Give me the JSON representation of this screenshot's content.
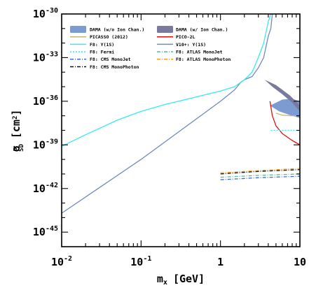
{
  "chart_data": {
    "type": "line",
    "title": "",
    "xlabel": "m",
    "xlabel_sub": "x",
    "xlabel_unit": "[GeV]",
    "ylabel": "σ",
    "ylabel_sup": "p",
    "ylabel_sub": "SD",
    "ylabel_unit_open": "[cm",
    "ylabel_unit_sup": "2",
    "ylabel_unit_close": "]",
    "xscale": "log",
    "yscale": "log",
    "xlim": [
      0.01,
      10
    ],
    "ylim": [
      1e-46,
      1e-30
    ],
    "grid": false,
    "legend_position": "top-left",
    "x_ticks": [
      {
        "value": 0.01,
        "base": "10",
        "exp": "-2"
      },
      {
        "value": 0.1,
        "base": "10",
        "exp": "-1"
      },
      {
        "value": 1,
        "base": "1",
        "exp": ""
      },
      {
        "value": 10,
        "base": "10",
        "exp": ""
      }
    ],
    "y_ticks": [
      {
        "value": 1e-30,
        "base": "10",
        "exp": "-30"
      },
      {
        "value": 1e-33,
        "base": "10",
        "exp": "-33"
      },
      {
        "value": 1e-36,
        "base": "10",
        "exp": "-36"
      },
      {
        "value": 1e-39,
        "base": "10",
        "exp": "-39"
      },
      {
        "value": 1e-42,
        "base": "10",
        "exp": "-42"
      },
      {
        "value": 1e-45,
        "base": "10",
        "exp": "-45"
      }
    ],
    "series": [
      {
        "name": "DAMA (w/o Ion Chan.)",
        "kind": "region",
        "color": "#7b9bd2",
        "points": [
          [
            4.2,
            5e-37
          ],
          [
            5.5,
            2e-37
          ],
          [
            8.0,
            1e-37
          ],
          [
            10.0,
            7e-38
          ],
          [
            10.0,
            1e-36
          ],
          [
            8.0,
            1.5e-36
          ],
          [
            6.0,
            1.3e-36
          ]
        ]
      },
      {
        "name": "DAMA (w/ Ion Chan.)",
        "kind": "region",
        "color": "#7a7a9e",
        "points": [
          [
            3.6,
            3e-35
          ],
          [
            4.5,
            1e-35
          ],
          [
            6.0,
            3e-36
          ],
          [
            8.0,
            8e-37
          ],
          [
            10.0,
            2e-37
          ],
          [
            10.0,
            5e-37
          ],
          [
            7.5,
            2.5e-36
          ],
          [
            5.0,
            1.3e-35
          ]
        ]
      },
      {
        "name": "PICASSO (2012)",
        "kind": "line",
        "color": "#c9b476",
        "dash": "",
        "points": [
          [
            5.0,
            1.5e-37
          ],
          [
            6.0,
            1.1e-37
          ],
          [
            8.0,
            1e-37
          ],
          [
            10.0,
            1e-37
          ]
        ]
      },
      {
        "name": "PICO-2L",
        "kind": "line",
        "color": "#e01010",
        "dash": "",
        "points": [
          [
            4.2,
            1e-36
          ],
          [
            4.5,
            1e-37
          ],
          [
            5.0,
            2e-38
          ],
          [
            6.0,
            6e-39
          ],
          [
            8.0,
            2e-39
          ],
          [
            10.0,
            1e-39
          ]
        ]
      },
      {
        "name": "F8: Υ(1S)",
        "kind": "line",
        "color": "#38e8f0",
        "dash": "",
        "points": [
          [
            0.01,
            8e-40
          ],
          [
            0.02,
            5e-39
          ],
          [
            0.05,
            5e-38
          ],
          [
            0.1,
            2e-37
          ],
          [
            0.2,
            6e-37
          ],
          [
            0.5,
            2e-36
          ],
          [
            1.0,
            5e-36
          ],
          [
            1.5,
            1e-35
          ],
          [
            2.0,
            3e-35
          ],
          [
            2.5,
            1e-34
          ],
          [
            3.0,
            1e-33
          ],
          [
            3.5,
            1e-32
          ],
          [
            4.0,
            3e-31
          ],
          [
            4.3,
            1e-30
          ]
        ]
      },
      {
        "name": "V10+: Υ(1S)",
        "kind": "line",
        "color": "#6f8bbd",
        "dash": "",
        "points": [
          [
            0.01,
            2e-44
          ],
          [
            0.1,
            1e-40
          ],
          [
            1.0,
            1e-36
          ],
          [
            1.5,
            6e-36
          ],
          [
            1.8,
            2e-35
          ],
          [
            2.0,
            3e-35
          ],
          [
            2.5,
            5e-35
          ],
          [
            3.0,
            2e-34
          ],
          [
            3.5,
            1e-33
          ],
          [
            4.0,
            3e-32
          ],
          [
            4.3,
            1e-31
          ],
          [
            4.5,
            1e-30
          ]
        ]
      },
      {
        "name": "F8: Fermi",
        "kind": "line",
        "color": "#38e8f0",
        "dash": "2,2",
        "points": [
          [
            4.3,
            1e-38
          ],
          [
            6.0,
            1e-38
          ],
          [
            10.0,
            1e-38
          ]
        ]
      },
      {
        "name": "F8: ATLAS MonoJet",
        "kind": "line",
        "color": "#58b898",
        "dash": "5,2,1,2",
        "points": [
          [
            1.0,
            6e-42
          ],
          [
            3.0,
            8e-42
          ],
          [
            10.0,
            1e-41
          ]
        ]
      },
      {
        "name": "F8: CMS MonoJet",
        "kind": "line",
        "color": "#3a6cc8",
        "dash": "5,2,1,2",
        "points": [
          [
            1.0,
            4e-42
          ],
          [
            3.0,
            5.5e-42
          ],
          [
            10.0,
            7e-42
          ]
        ]
      },
      {
        "name": "F8: ATLAS MonoPhoton",
        "kind": "line",
        "color": "#f0a020",
        "dash": "5,2,1,2",
        "points": [
          [
            1.0,
            1.2e-41
          ],
          [
            3.0,
            1.7e-41
          ],
          [
            10.0,
            2.4e-41
          ]
        ]
      },
      {
        "name": "F8: CMS MonoPhoton",
        "kind": "line",
        "color": "#111111",
        "dash": "5,2,1,2",
        "points": [
          [
            1.0,
            1e-41
          ],
          [
            3.0,
            1.5e-41
          ],
          [
            10.0,
            2e-41
          ]
        ]
      }
    ],
    "legend": [
      {
        "series": 0,
        "label": "DAMA (w/o Ion Chan.)",
        "symbol": "patch"
      },
      {
        "series": 1,
        "label": "DAMA (w/ Ion Chan.)",
        "symbol": "patch"
      },
      {
        "series": 2,
        "label": "PICASSO (2012)",
        "symbol": "line"
      },
      {
        "series": 3,
        "label": "PICO-2L",
        "symbol": "line"
      },
      {
        "series": 4,
        "label": "F8: Υ(1S)",
        "symbol": "line"
      },
      {
        "series": 5,
        "label": "V10+: Υ(1S)",
        "symbol": "line"
      },
      {
        "series": 6,
        "label": "F8: Fermi",
        "symbol": "line"
      },
      {
        "series": 7,
        "label": "F8: ATLAS MonoJet",
        "symbol": "line"
      },
      {
        "series": 8,
        "label": "F8: CMS MonoJet",
        "symbol": "line"
      },
      {
        "series": 9,
        "label": "F8: ATLAS MonoPhoton",
        "symbol": "line"
      },
      {
        "series": 10,
        "label": "F8: CMS MonoPhoton",
        "symbol": "line"
      }
    ]
  }
}
